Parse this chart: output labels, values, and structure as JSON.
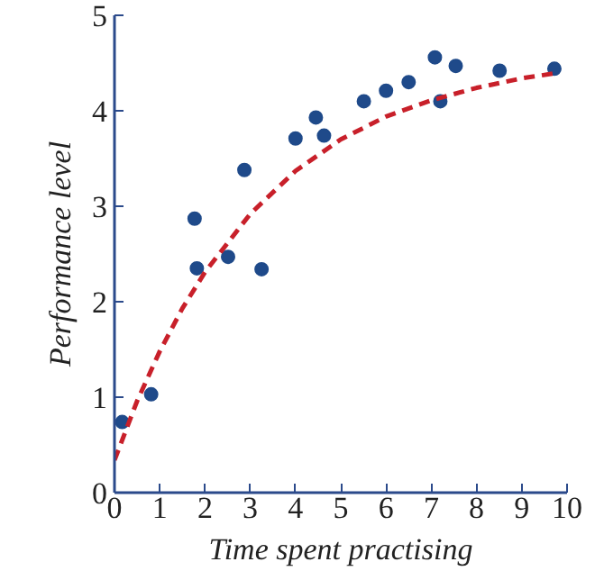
{
  "chart_data": {
    "type": "scatter",
    "xlabel": "Time spent practising",
    "ylabel": "Performance level",
    "xlim": [
      0,
      10
    ],
    "ylim": [
      0,
      5
    ],
    "xticks": [
      0,
      1,
      2,
      3,
      4,
      5,
      6,
      7,
      8,
      9,
      10
    ],
    "yticks": [
      0,
      1,
      2,
      3,
      4,
      5
    ],
    "grid": false,
    "marker": "circle",
    "series": [
      {
        "color": "#1f4a8a",
        "x": [
          0.17,
          0.81,
          1.77,
          1.82,
          2.51,
          2.87,
          3.25,
          4.0,
          4.45,
          4.63,
          5.51,
          6.0,
          6.5,
          7.08,
          7.2,
          7.54,
          8.51,
          9.72
        ],
        "values": [
          0.74,
          1.03,
          2.87,
          2.35,
          2.47,
          3.38,
          2.34,
          3.71,
          3.93,
          3.74,
          4.1,
          4.21,
          4.3,
          4.56,
          4.1,
          4.47,
          4.42,
          4.44
        ]
      },
      {
        "type": "line",
        "color": "#c8202a",
        "line_style": "dashed",
        "marker": "none",
        "x": [
          0,
          0.5,
          1,
          1.5,
          2,
          3,
          4,
          5,
          6,
          7,
          8,
          9,
          9.7
        ],
        "values": [
          0.34,
          0.96,
          1.48,
          1.93,
          2.31,
          2.92,
          3.37,
          3.7,
          3.94,
          4.11,
          4.24,
          4.34,
          4.39
        ]
      }
    ]
  }
}
